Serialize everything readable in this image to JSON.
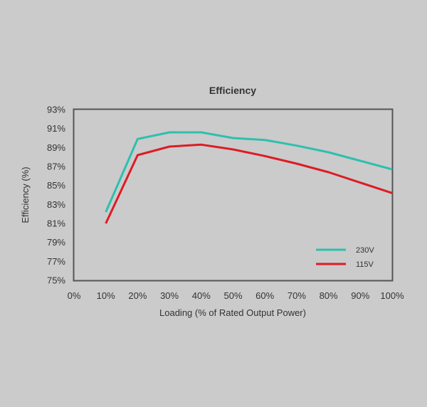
{
  "chart_data": {
    "type": "line",
    "title": "Efficiency",
    "xlabel": "Loading (% of Rated Output Power)",
    "ylabel": "Efficiency (%)",
    "x_ticks": [
      "0%",
      "10%",
      "20%",
      "30%",
      "40%",
      "50%",
      "60%",
      "70%",
      "80%",
      "90%",
      "100%"
    ],
    "y_ticks": [
      "75%",
      "77%",
      "79%",
      "81%",
      "83%",
      "85%",
      "87%",
      "89%",
      "91%",
      "93%"
    ],
    "xlim": [
      0,
      100
    ],
    "ylim": [
      75,
      93
    ],
    "grid": false,
    "legend_position": "bottom-right",
    "series": [
      {
        "name": "230V",
        "color": "#2ebfae",
        "x": [
          10,
          20,
          30,
          40,
          50,
          60,
          70,
          80,
          90,
          100
        ],
        "y": [
          82.2,
          89.9,
          90.6,
          90.6,
          90.0,
          89.8,
          89.2,
          88.5,
          87.6,
          86.7
        ]
      },
      {
        "name": "115V",
        "color": "#dd1c24",
        "x": [
          10,
          20,
          30,
          40,
          50,
          60,
          70,
          80,
          90,
          100
        ],
        "y": [
          81.0,
          88.2,
          89.1,
          89.3,
          88.8,
          88.1,
          87.3,
          86.4,
          85.3,
          84.2
        ]
      }
    ]
  }
}
